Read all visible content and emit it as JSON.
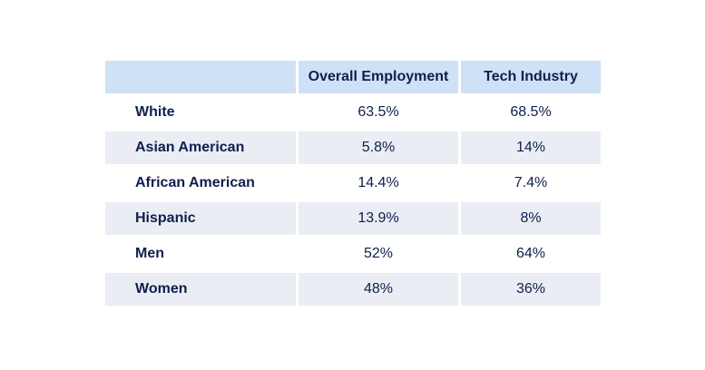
{
  "table": {
    "headers": [
      "",
      "Overall Employment",
      "Tech Industry"
    ],
    "rows": [
      {
        "label": "White",
        "overall": "63.5%",
        "tech": "68.5%"
      },
      {
        "label": "Asian American",
        "overall": "5.8%",
        "tech": "14%"
      },
      {
        "label": "African American",
        "overall": "14.4%",
        "tech": "7.4%"
      },
      {
        "label": "Hispanic",
        "overall": "13.9%",
        "tech": "8%"
      },
      {
        "label": "Men",
        "overall": "52%",
        "tech": "64%"
      },
      {
        "label": "Women",
        "overall": "48%",
        "tech": "36%"
      }
    ]
  },
  "colors": {
    "header_bg": "#cfe1f6",
    "shaded_row_bg": "#eaedf3",
    "text": "#0f1f4d"
  }
}
